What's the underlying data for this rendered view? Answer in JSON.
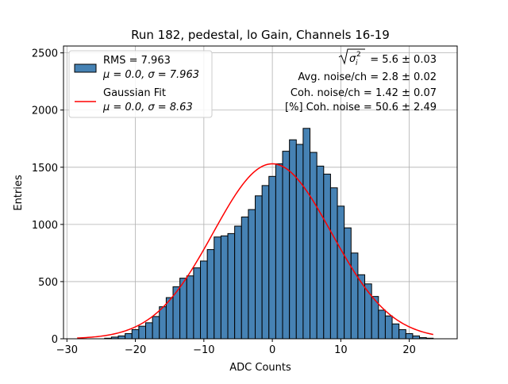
{
  "chart_data": {
    "type": "bar",
    "title": "Run 182, pedestal, lo Gain, Channels 16-19",
    "xlabel": "ADC Counts",
    "ylabel": "Entries",
    "xlim": [
      -30.5,
      27
    ],
    "ylim": [
      0,
      2560
    ],
    "xticks": [
      -30,
      -20,
      -10,
      0,
      10,
      20
    ],
    "xtick_labels": [
      "−30",
      "−20",
      "−10",
      "0",
      "10",
      "20"
    ],
    "yticks": [
      0,
      500,
      1000,
      1500,
      2000,
      2500
    ],
    "ytick_labels": [
      "0",
      "500",
      "1000",
      "1500",
      "2000",
      "2500"
    ],
    "grid": true,
    "bin_width": 1,
    "bin_centers": [
      -24,
      -23,
      -22,
      -21,
      -20,
      -19,
      -18,
      -17,
      -16,
      -15,
      -14,
      -13,
      -12,
      -11,
      -10,
      -9,
      -8,
      -7,
      -6,
      -5,
      -4,
      -3,
      -2,
      -1,
      0,
      1,
      2,
      3,
      4,
      5,
      6,
      7,
      8,
      9,
      10,
      11,
      12,
      13,
      14,
      15,
      16,
      17,
      18,
      19,
      20,
      21,
      22,
      23
    ],
    "counts": [
      5,
      15,
      25,
      45,
      80,
      110,
      140,
      195,
      280,
      360,
      455,
      530,
      550,
      620,
      680,
      780,
      890,
      900,
      920,
      985,
      1065,
      1130,
      1250,
      1340,
      1420,
      1530,
      1640,
      1740,
      1700,
      1840,
      1630,
      1510,
      1440,
      1320,
      1160,
      970,
      750,
      560,
      480,
      370,
      250,
      200,
      130,
      80,
      45,
      25,
      10,
      5
    ],
    "fit_curve": {
      "name": "Gaussian Fit",
      "color": "#ff0000",
      "peak": 1530,
      "mean": 0.0,
      "sigma": 8.63,
      "x_range": [
        -28.5,
        23.5
      ]
    },
    "bar_color": "#4682b4",
    "legend_position": "top-left",
    "legend": [
      {
        "label": "RMS = 7.963",
        "sublabel": "μ = 0.0, σ = 7.963",
        "marker": "patch",
        "color": "#4682b4"
      },
      {
        "label": "Gaussian Fit",
        "sublabel": "μ = 0.0, σ = 8.63",
        "marker": "line",
        "color": "#ff0000"
      }
    ],
    "annotations": {
      "sigma_total": "= 5.6 ± 0.03",
      "avg_noise": "Avg. noise/ch = 2.8 ± 0.02",
      "coh_noise": "Coh. noise/ch = 1.42 ± 0.07",
      "pct_coh_noise": "[%] Coh. noise = 50.6 ± 2.49"
    }
  }
}
